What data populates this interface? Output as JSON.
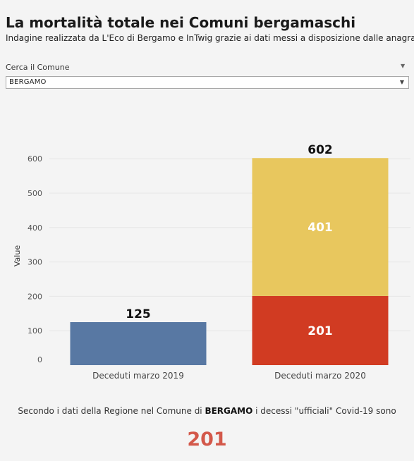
{
  "header": {
    "title": "La mortalità totale nei Comuni bergamaschi",
    "subtitle": "Indagine realizzata da L'Eco di Bergamo e InTwig grazie ai dati messi a disposizione dalle anagrafi"
  },
  "filter": {
    "label": "Cerca il Comune",
    "selected": "BERGAMO",
    "menu_icon": "caret-down-icon",
    "arrow_icon": "dropdown-arrow-icon"
  },
  "chart_data": {
    "type": "bar",
    "stacked": true,
    "ylabel": "Value",
    "ylim": [
      0,
      640
    ],
    "yticks": [
      0,
      100,
      200,
      300,
      400,
      500,
      600
    ],
    "grid": true,
    "categories": [
      "Deceduti marzo 2019",
      "Deceduti marzo 2020"
    ],
    "totals": [
      125,
      602
    ],
    "bars": [
      {
        "category": "Deceduti marzo 2019",
        "segments": [
          {
            "value": 125,
            "color": "#5878a3"
          }
        ]
      },
      {
        "category": "Deceduti marzo 2020",
        "segments": [
          {
            "value": 201,
            "color": "#d13b22"
          },
          {
            "value": 401,
            "color": "#e8c75e"
          }
        ]
      }
    ]
  },
  "footer": {
    "text_before": "Secondo i dati della Regione nel Comune di ",
    "comune": "BERGAMO",
    "text_after": " i decessi \"ufficiali\" Covid-19 sono",
    "value": "201"
  }
}
